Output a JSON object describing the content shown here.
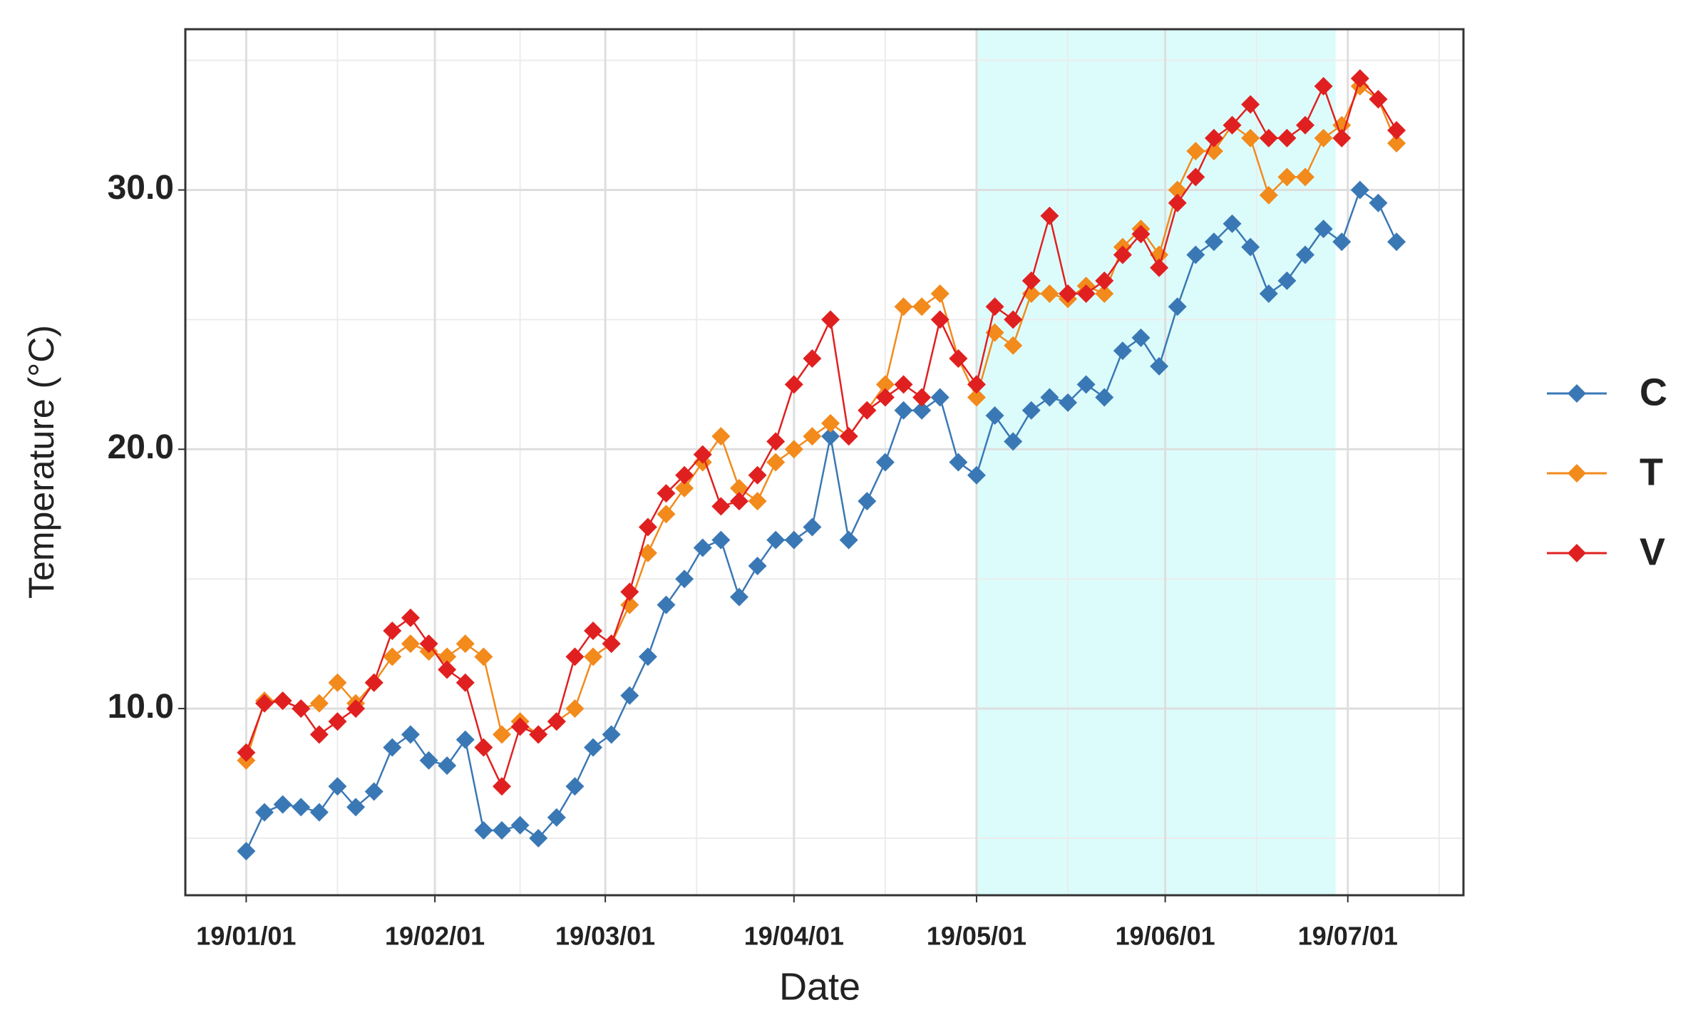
{
  "chart_data": {
    "type": "line",
    "x_label": "Date",
    "y_label": "Temperature (°C)",
    "x": [
      "2019-01-01",
      "2019-01-04",
      "2019-01-07",
      "2019-01-10",
      "2019-01-13",
      "2019-01-16",
      "2019-01-19",
      "2019-01-22",
      "2019-01-25",
      "2019-01-28",
      "2019-01-31",
      "2019-02-03",
      "2019-02-06",
      "2019-02-09",
      "2019-02-12",
      "2019-02-15",
      "2019-02-18",
      "2019-02-21",
      "2019-02-24",
      "2019-02-27",
      "2019-03-02",
      "2019-03-05",
      "2019-03-08",
      "2019-03-11",
      "2019-03-14",
      "2019-03-17",
      "2019-03-20",
      "2019-03-23",
      "2019-03-26",
      "2019-03-29",
      "2019-04-01",
      "2019-04-04",
      "2019-04-07",
      "2019-04-10",
      "2019-04-13",
      "2019-04-16",
      "2019-04-19",
      "2019-04-22",
      "2019-04-25",
      "2019-04-28",
      "2019-05-01",
      "2019-05-04",
      "2019-05-07",
      "2019-05-10",
      "2019-05-13",
      "2019-05-16",
      "2019-05-19",
      "2019-05-22",
      "2019-05-25",
      "2019-05-28",
      "2019-05-31",
      "2019-06-03",
      "2019-06-06",
      "2019-06-09",
      "2019-06-12",
      "2019-06-15",
      "2019-06-18",
      "2019-06-21",
      "2019-06-24",
      "2019-06-27",
      "2019-06-30",
      "2019-07-03",
      "2019-07-06",
      "2019-07-09"
    ],
    "series": [
      {
        "name": "C",
        "color": "#3a78b5",
        "values": [
          4.5,
          6.0,
          6.3,
          6.2,
          6.0,
          7.0,
          6.2,
          6.8,
          8.5,
          9.0,
          8.0,
          7.8,
          8.8,
          5.3,
          5.3,
          5.5,
          5.0,
          5.8,
          7.0,
          8.5,
          9.0,
          10.5,
          12.0,
          14.0,
          15.0,
          16.2,
          16.5,
          14.3,
          15.5,
          16.5,
          16.5,
          17.0,
          20.5,
          16.5,
          18.0,
          19.5,
          21.5,
          21.5,
          22.0,
          19.5,
          19.0,
          21.3,
          20.3,
          21.5,
          22.0,
          21.8,
          22.5,
          22.0,
          23.8,
          24.3,
          23.2,
          25.5,
          27.5,
          28.0,
          28.7,
          27.8,
          26.0,
          26.5,
          27.5,
          28.5,
          28.0,
          30.0,
          29.5,
          28.0
        ]
      },
      {
        "name": "T",
        "color": "#f28a1c",
        "values": [
          8.0,
          10.3,
          10.3,
          10.0,
          10.2,
          11.0,
          10.2,
          11.0,
          12.0,
          12.5,
          12.2,
          12.0,
          12.5,
          12.0,
          9.0,
          9.5,
          9.0,
          9.5,
          10.0,
          12.0,
          12.5,
          14.0,
          16.0,
          17.5,
          18.5,
          19.5,
          20.5,
          18.5,
          18.0,
          19.5,
          20.0,
          20.5,
          21.0,
          20.5,
          21.5,
          22.5,
          25.5,
          25.5,
          26.0,
          23.5,
          22.0,
          24.5,
          24.0,
          26.0,
          26.0,
          25.8,
          26.3,
          26.0,
          27.8,
          28.5,
          27.5,
          30.0,
          31.5,
          31.5,
          32.5,
          32.0,
          29.8,
          30.5,
          30.5,
          32.0,
          32.5,
          34.0,
          33.5,
          31.8
        ]
      },
      {
        "name": "V",
        "color": "#e02020",
        "values": [
          8.3,
          10.2,
          10.3,
          10.0,
          9.0,
          9.5,
          10.0,
          11.0,
          13.0,
          13.5,
          12.5,
          11.5,
          11.0,
          8.5,
          7.0,
          9.3,
          9.0,
          9.5,
          12.0,
          13.0,
          12.5,
          14.5,
          17.0,
          18.3,
          19.0,
          19.8,
          17.8,
          18.0,
          19.0,
          20.3,
          22.5,
          23.5,
          25.0,
          20.5,
          21.5,
          22.0,
          22.5,
          22.0,
          25.0,
          23.5,
          22.5,
          25.5,
          25.0,
          26.5,
          29.0,
          26.0,
          26.0,
          26.5,
          27.5,
          28.3,
          27.0,
          29.5,
          30.5,
          32.0,
          32.5,
          33.3,
          32.0,
          32.0,
          32.5,
          34.0,
          32.0,
          34.3,
          33.5,
          32.3
        ]
      }
    ],
    "xlim": [
      "2018-12-22",
      "2019-07-20"
    ],
    "xticks": [
      {
        "value": "2019-01-01",
        "label": "19/01/01"
      },
      {
        "value": "2019-02-01",
        "label": "19/02/01"
      },
      {
        "value": "2019-03-01",
        "label": "19/03/01"
      },
      {
        "value": "2019-04-01",
        "label": "19/04/01"
      },
      {
        "value": "2019-05-01",
        "label": "19/05/01"
      },
      {
        "value": "2019-06-01",
        "label": "19/06/01"
      },
      {
        "value": "2019-07-01",
        "label": "19/07/01"
      }
    ],
    "x_minor_grid": [
      "2019-01-16",
      "2019-02-15",
      "2019-03-16",
      "2019-04-16",
      "2019-05-16",
      "2019-06-16",
      "2019-07-16"
    ],
    "ylim": [
      2.8,
      36.2
    ],
    "yticks": [
      {
        "value": 10,
        "label": "10.0"
      },
      {
        "value": 20,
        "label": "20.0"
      },
      {
        "value": 30,
        "label": "30.0"
      }
    ],
    "y_minor_grid": [
      5,
      15,
      25,
      35
    ],
    "grid": true,
    "highlight": {
      "from": "2019-05-01",
      "to": "2019-06-29",
      "color": "#dcfcfc"
    },
    "legend": "right"
  }
}
